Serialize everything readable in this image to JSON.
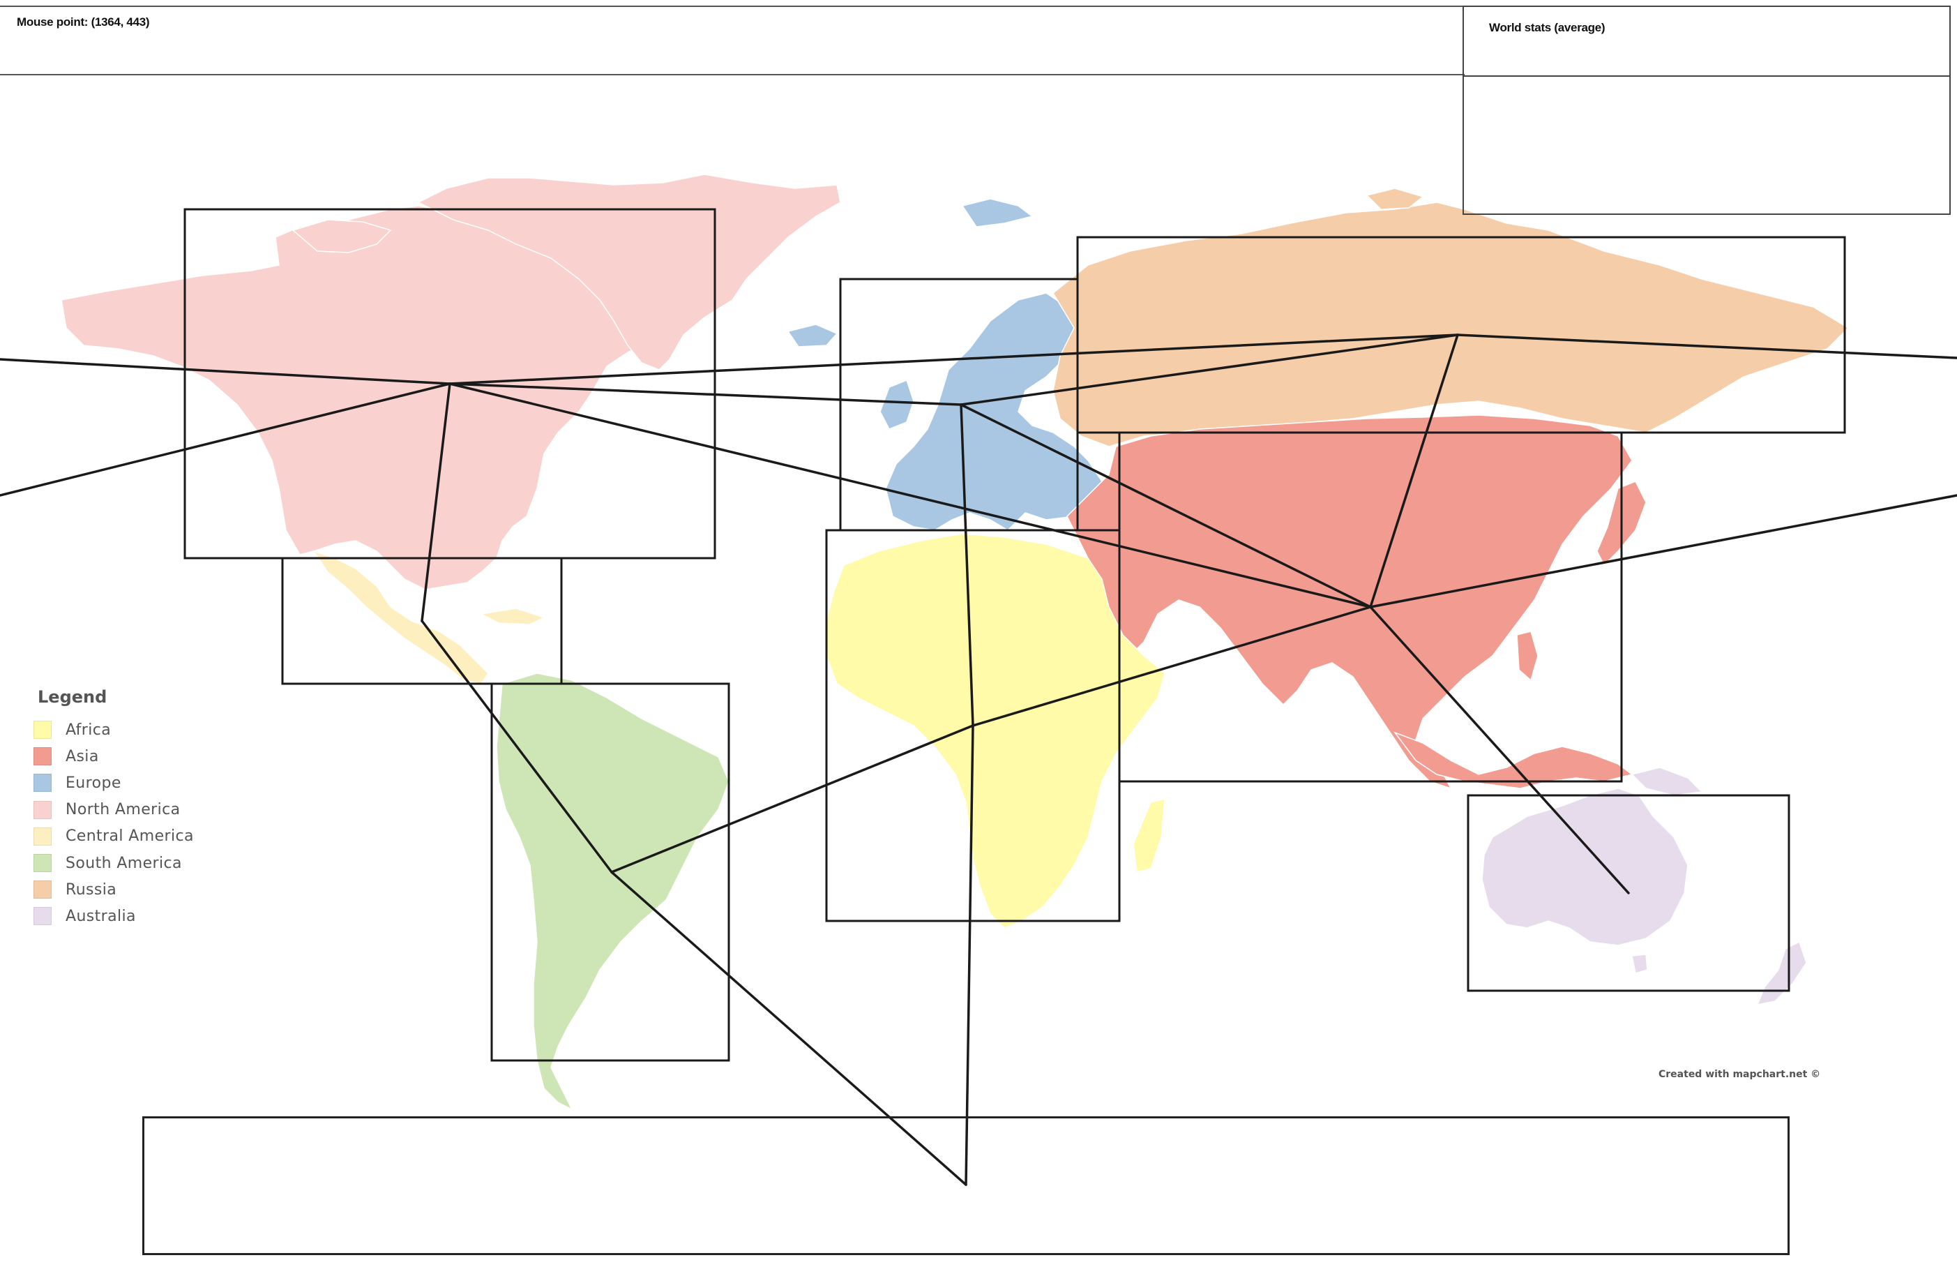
{
  "header": {
    "mouse_readout": "Mouse point: (1364, 443)"
  },
  "stats_panel": {
    "title": "World stats (average)"
  },
  "legend": {
    "title": "Legend",
    "items": [
      {
        "label": "Africa",
        "color": "#fffba8"
      },
      {
        "label": "Asia",
        "color": "#f29b91"
      },
      {
        "label": "Europe",
        "color": "#a9c7e3"
      },
      {
        "label": "North America",
        "color": "#f9d2d0"
      },
      {
        "label": "Central America",
        "color": "#fdefbf"
      },
      {
        "label": "South America",
        "color": "#cee5b6"
      },
      {
        "label": "Russia",
        "color": "#f5cda9"
      },
      {
        "label": "Australia",
        "color": "#e7dcec"
      }
    ]
  },
  "credit": "Created with mapchart.net ©",
  "colors": {
    "africa": "#fffba8",
    "asia": "#f29b91",
    "europe": "#a9c7e3",
    "north_america": "#f9d2d0",
    "central_america": "#fdefbf",
    "south_america": "#cee5b6",
    "russia": "#f5cda9",
    "australia": "#e7dcec",
    "frame_stroke": "#1a1a1a",
    "border_line": "#ffffff"
  }
}
